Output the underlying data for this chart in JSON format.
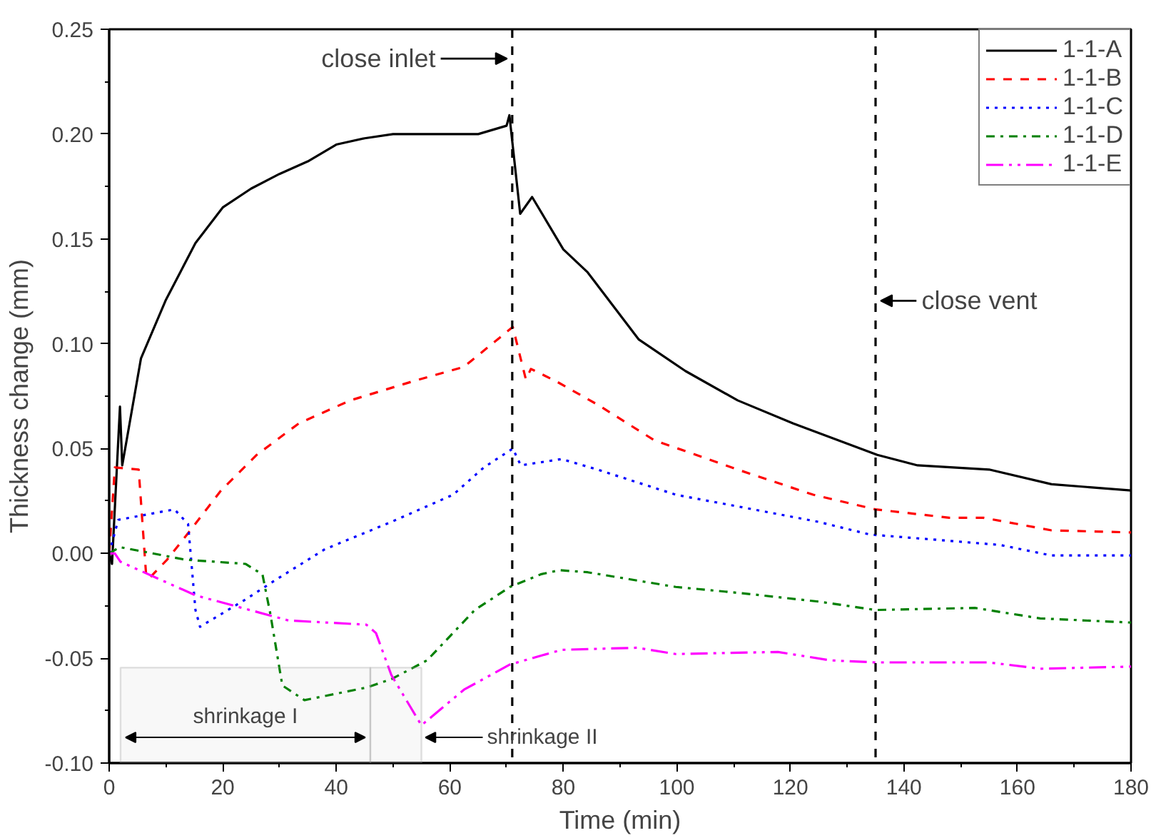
{
  "chart_data": {
    "type": "line",
    "xlabel": "Time (min)",
    "ylabel": "Thickness change (mm)",
    "xlim": [
      0,
      180
    ],
    "xticks": [
      0,
      20,
      40,
      60,
      80,
      100,
      120,
      140,
      160,
      180
    ],
    "ylim": [
      -0.1,
      0.25
    ],
    "yticks": [
      {
        "value": -0.1,
        "label": "-0.10"
      },
      {
        "value": -0.05,
        "label": "-0.05"
      },
      {
        "value": 0,
        "label": "0.00"
      },
      {
        "value": 0.05,
        "label": "0.05"
      },
      {
        "value": 0.1,
        "label": "0.10"
      },
      {
        "value": 0.15,
        "label": "0.15"
      },
      {
        "value": 0.2,
        "label": "0.20"
      },
      {
        "value": 0.25,
        "label": "0.25"
      }
    ],
    "grid": false,
    "legend": "top right",
    "marker": "none",
    "series": [
      {
        "name": "1-1-A",
        "color": "#000000",
        "line_style": "solid",
        "x": [
          0,
          0.5,
          1.9,
          2.3,
          5.6,
          10,
          15.2,
          20,
          25,
          30,
          35,
          40,
          45,
          50,
          60,
          65,
          70,
          70.5,
          72.4,
          74.5,
          80,
          84.3,
          93.3,
          101.5,
          110.7,
          120.5,
          135.3,
          142.4,
          155,
          166,
          180
        ],
        "values": [
          0,
          -0.005,
          0.07,
          0.042,
          0.093,
          0.121,
          0.148,
          0.165,
          0.174,
          0.181,
          0.187,
          0.195,
          0.198,
          0.2,
          0.2,
          0.2,
          0.204,
          0.209,
          0.162,
          0.17,
          0.145,
          0.134,
          0.102,
          0.087,
          0.073,
          0.062,
          0.047,
          0.042,
          0.04,
          0.033,
          0.03
        ]
      },
      {
        "name": "1-1-B",
        "color": "#ff0000",
        "line_style": "dashed",
        "x": [
          0,
          1,
          5.2,
          6.5,
          7,
          10.2,
          14.3,
          19.7,
          26,
          33.4,
          42.5,
          53.4,
          62.5,
          71.1,
          73.4,
          74.3,
          78.8,
          86,
          96,
          110.7,
          124,
          135,
          148,
          154,
          166,
          180
        ],
        "values": [
          0,
          0.041,
          0.04,
          -0.01,
          -0.012,
          -0.003,
          0.011,
          0.03,
          0.047,
          0.062,
          0.073,
          0.082,
          0.089,
          0.108,
          0.083,
          0.088,
          0.082,
          0.071,
          0.054,
          0.04,
          0.028,
          0.021,
          0.017,
          0.017,
          0.011,
          0.01
        ]
      },
      {
        "name": "1-1-C",
        "color": "#0000ff",
        "line_style": "dotted",
        "x": [
          0,
          1.6,
          11.5,
          13.9,
          15.2,
          16,
          24,
          29.7,
          38,
          49.7,
          60.6,
          66,
          71.1,
          72.5,
          79.7,
          86,
          99.8,
          111.5,
          125,
          134,
          148,
          157,
          166,
          180
        ],
        "values": [
          0,
          0.016,
          0.021,
          0.014,
          -0.027,
          -0.035,
          -0.022,
          -0.012,
          0.002,
          0.015,
          0.028,
          0.041,
          0.05,
          0.042,
          0.045,
          0.04,
          0.028,
          0.022,
          0.015,
          0.009,
          0.006,
          0.004,
          -0.001,
          -0.001
        ]
      },
      {
        "name": "1-1-D",
        "color": "#008000",
        "line_style": "dashdot",
        "x": [
          0,
          1.9,
          13.4,
          24,
          27,
          28.4,
          30.5,
          34.4,
          45.3,
          49.7,
          56,
          64.4,
          70.6,
          76,
          79.3,
          84.3,
          99.8,
          111.5,
          125,
          135,
          152.5,
          164,
          180
        ],
        "values": [
          0,
          0.003,
          -0.003,
          -0.005,
          -0.01,
          -0.029,
          -0.063,
          -0.07,
          -0.064,
          -0.06,
          -0.051,
          -0.027,
          -0.016,
          -0.01,
          -0.008,
          -0.009,
          -0.016,
          -0.019,
          -0.023,
          -0.027,
          -0.026,
          -0.031,
          -0.033
        ]
      },
      {
        "name": "1-1-E",
        "color": "#ff00ff",
        "line_style": "dashdotdot",
        "x": [
          0,
          1,
          2,
          15.2,
          31.6,
          45.3,
          47,
          49.7,
          55,
          62.5,
          70.6,
          79.7,
          93,
          99.8,
          117.8,
          127,
          135,
          155,
          164,
          180
        ],
        "values": [
          0,
          0,
          -0.004,
          -0.02,
          -0.032,
          -0.034,
          -0.038,
          -0.058,
          -0.082,
          -0.065,
          -0.053,
          -0.046,
          -0.045,
          -0.048,
          -0.047,
          -0.051,
          -0.052,
          -0.052,
          -0.055,
          -0.054
        ]
      }
    ],
    "ref_lines": [
      {
        "axis": "x",
        "value": 71,
        "label": "close inlet",
        "color": "#000000",
        "line_style": "dashed"
      },
      {
        "axis": "x",
        "value": 135,
        "label": "close vent",
        "color": "#000000",
        "line_style": "dashed"
      }
    ],
    "bands": [
      {
        "axis": "x",
        "from": 2,
        "to": 46,
        "label": "shrinkage I",
        "color": "#999999"
      },
      {
        "axis": "x",
        "from": 46,
        "to": 55,
        "label": "shrinkage II",
        "color": "#999999"
      }
    ]
  }
}
